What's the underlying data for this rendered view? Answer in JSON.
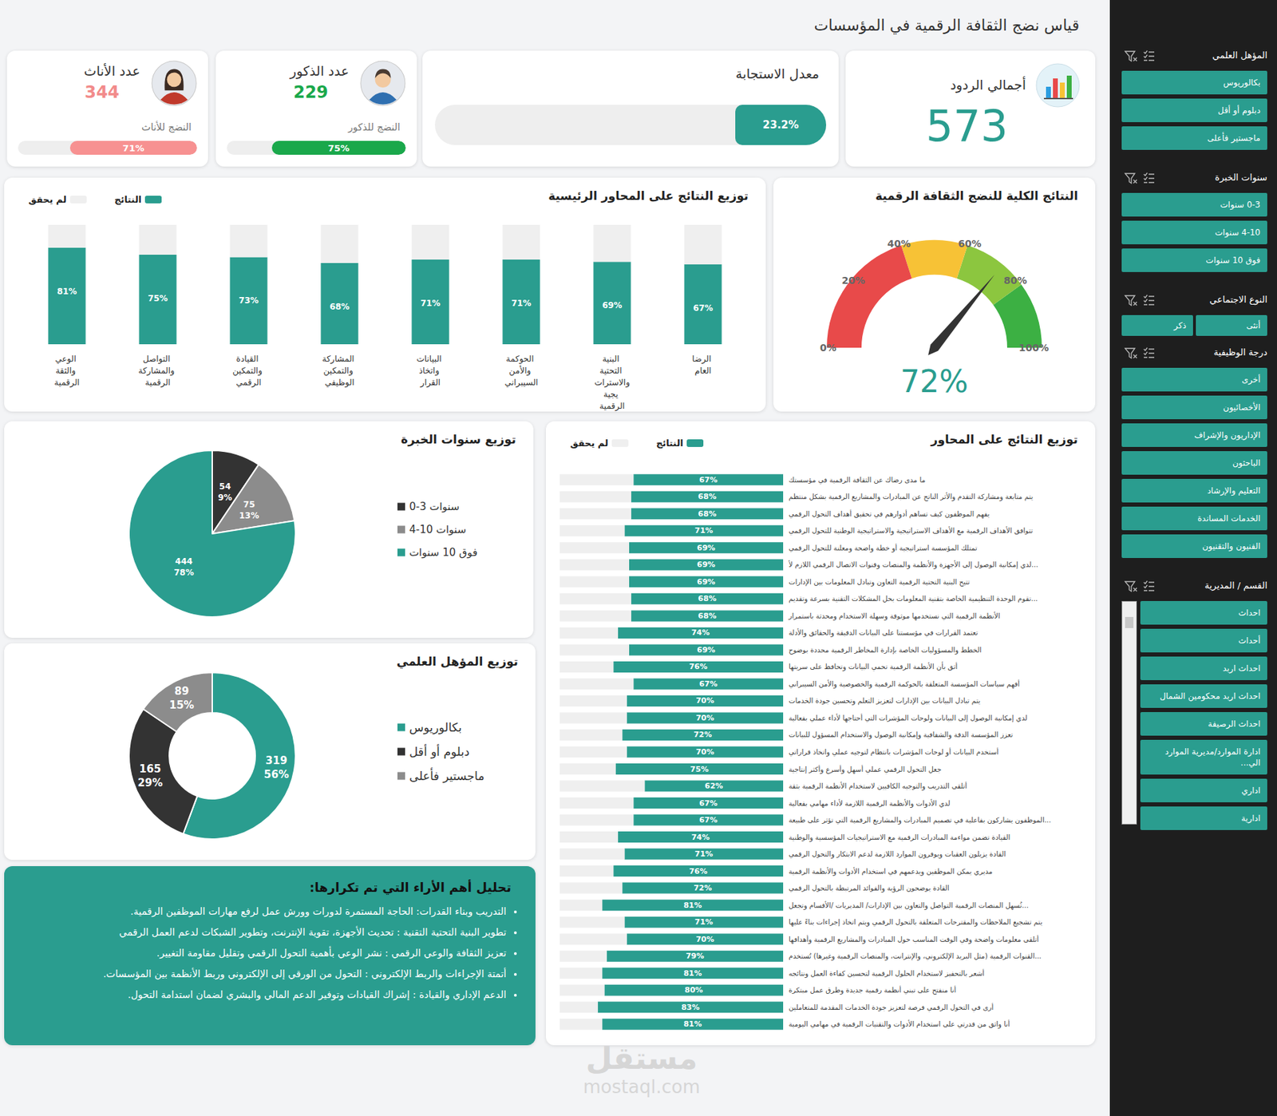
{
  "header": {
    "title": "قياس نضج الثقافة الرقمية في المؤسسات"
  },
  "kpis": {
    "total": {
      "label": "أجمالي الردود",
      "value": 573,
      "color": "#2a9d8f"
    },
    "response_rate": {
      "label": "معدل الاستجابة",
      "value": 23.2,
      "value_label": "23.2%",
      "xlim": [
        0,
        100
      ],
      "color": "#2a9d8f"
    },
    "male": {
      "label": "عدد الذكور",
      "value": 229,
      "color": "#1aa84b",
      "maturity": {
        "label": "النضج للذكور",
        "value": 75,
        "value_label": "75%",
        "xlim": [
          0,
          100
        ],
        "color": "#1aa84b"
      }
    },
    "female": {
      "label": "عدد الأناث",
      "value": 344,
      "color": "#f28b8b",
      "maturity": {
        "label": "النضج للأناث",
        "value": 71,
        "value_label": "71%",
        "xlim": [
          0,
          100
        ],
        "color": "#f79191"
      }
    }
  },
  "chart_data": [
    {
      "type": "gauge",
      "title": "النتائج الكلية للنضج الثقافة الرقمية",
      "value": 72,
      "value_label": "72%",
      "ylim": [
        0,
        100
      ],
      "yticks": [
        {
          "value": 0,
          "label": "0%"
        },
        {
          "value": 20,
          "label": "20%"
        },
        {
          "value": 40,
          "label": "40%"
        },
        {
          "value": 60,
          "label": "60%"
        },
        {
          "value": 80,
          "label": "80%"
        },
        {
          "value": 100,
          "label": "100%"
        }
      ],
      "bands": [
        {
          "from": 0,
          "to": 40,
          "color": "#e84a4a"
        },
        {
          "from": 40,
          "to": 60,
          "color": "#f7c236"
        },
        {
          "from": 60,
          "to": 80,
          "color": "#8cc63f"
        },
        {
          "from": 80,
          "to": 100,
          "color": "#3cb043"
        }
      ]
    },
    {
      "type": "bar",
      "title": "توزيع النتائج على المحاور الرئيسية",
      "categories": [
        "الرضا العام",
        "البنية التحتية والاستراتيجية الرقمية",
        "الحوكمة والأمن السيبراني",
        "البيانات واتخاذ القرار",
        "المشاركة والتمكين الوظيفي",
        "القيادة والتمكين الرقمي",
        "التواصل والمشاركة الرقمية",
        "الوعي والثقة الرقمية"
      ],
      "series": [
        {
          "name": "النتائج",
          "color": "#2a9d8f",
          "values": [
            67,
            69,
            71,
            71,
            68,
            73,
            75,
            81
          ],
          "value_labels": [
            "67%",
            "69%",
            "71%",
            "71%",
            "68%",
            "73%",
            "75%",
            "81%"
          ]
        },
        {
          "name": "لم يحقق",
          "color": "#efefef",
          "values": [
            33,
            31,
            29,
            29,
            32,
            27,
            25,
            19
          ]
        }
      ],
      "stacked": true,
      "data_labels": true,
      "ylim": [
        0,
        100
      ],
      "tick_labels": "x",
      "legend": "top-left"
    },
    {
      "type": "bar",
      "title": "توزيع النتائج على المحاور",
      "orientation": "horizontal",
      "categories": [
        "ما مدى رضاك عن الثقافة الرقمية في مؤسستك",
        "يتم متابعة ومشاركة التقدم والأثر الناتج عن المبادرات والمشاريع الرقمية بشكل منتظم",
        "يفهم الموظفون كيف تساهم أدوارهم في تحقيق أهداف التحول الرقمي",
        "تتوافق الأهداف الرقمية مع الأهداف الاستراتيجية والاستراتيجية الوطنية للتحول الرقمي",
        "تمتلك المؤسسة استراتيجية أو خطة واضحة ومعلنة للتحول الرقمي",
        "لدي إمكانية الوصول إلى الأجهزة والأنظمة والمنصات وقنوات الاتصال الرقمي اللازم لأ...",
        "تتيح البنية التحتية الرقمية التعاون وتبادل المعلومات بين الإدارات",
        "تقوم الوحدة التنظيمية الخاصة بتقنية المعلومات بحل المشكلات التقنية بسرعة وتقديم...",
        "الأنظمة الرقمية التي نستخدمها موثوقة وسهلة الاستخدام ومحدثة باستمرار",
        "تعتمد القرارات في مؤسستنا على البيانات الدقيقة والحقائق والأدلة",
        "الخطط والمسؤوليات الخاصة بإدارة المخاطر الرقمية محددة بوضوح",
        "أثق بأن الأنظمة الرقمية تحمي البيانات وتحافظ على سريتها",
        "أفهم سياسات المؤسسة المتعلقة بالحوكمة الرقمية والخصوصية والأمن السيبراني",
        "يتم تبادل البيانات بين الإدارات لتعزيز التعلم وتحسين جودة الخدمات",
        "لدي إمكانية الوصول إلى البيانات ولوحات المؤشرات التي أحتاجها لأداء عملي بفعالية",
        "تعزز المؤسسة الدقة والشفافية وإمكانية الوصول والاستخدام المسؤول للبيانات",
        "أستخدم البيانات أو لوحات المؤشرات بانتظام لتوجيه عملي واتخاذ قراراتي",
        "جعل التحول الرقمي عملي أسهل وأسرع وأكثر إنتاجية",
        "أتلقى التدريب والتوجيه الكافيين لاستخدام الأنظمة الرقمية بثقة",
        "لدي الأدوات والأنظمة الرقمية اللازمة لأداء مهامي بفعالية",
        "الموظفون يشاركون بفاعلية في تصميم المبادرات والمشاريع الرقمية التي تؤثر على طبيعة...",
        "القيادة تضمن مواءمة المبادرات الرقمية مع الاستراتيجيات المؤسسية والوطنية",
        "القادة يزيلون العقبات ويوفرون الموارد اللازمة لدعم الابتكار والتحول الرقمي",
        "مديري يمكن الموظفين ويدعمهم في استخدام الأدوات والأنظمة الرقمية",
        "القادة يوضحون الرؤية والفوائد المرتبطة بالتحول الرقمي",
        "تُسهل المنصات الرقمية التواصل والتعاون بين الإدارات/ المديريات /الأقسام وتجعل...",
        "يتم تشجيع الملاحظات والمقترحات المتعلقة بالتحول الرقمي ويتم اتخاذ إجراءات بناءً عليها",
        "أتلقى معلومات واضحة وفي الوقت المناسب حول المبادرات والمشاريع الرقمية وأهدافها",
        "القنوات الرقمية (مثل البريد الإلكتروني، والإنترانت، والمنصات الرقمية وغيرها) تُستخدم...",
        "أشعر بالتحفيز لاستخدام الحلول الرقمية لتحسين كفاءة العمل ونتائجه",
        "أنا منفتح على تبني أنظمة رقمية جديدة وطرق عمل مبتكرة",
        "أرى في التحول الرقمي فرصة لتعزيز جودة الخدمات المقدمة للمتعاملين",
        "أنا واثق من قدرتي على استخدام الأدوات والتقنيات الرقمية في مهامي اليومية"
      ],
      "series": [
        {
          "name": "النتائج",
          "color": "#2a9d8f",
          "values": [
            67,
            68,
            68,
            71,
            69,
            69,
            69,
            68,
            68,
            74,
            69,
            76,
            67,
            70,
            70,
            72,
            70,
            75,
            62,
            67,
            67,
            74,
            71,
            76,
            72,
            81,
            71,
            70,
            79,
            81,
            80,
            83,
            81
          ],
          "value_labels": [
            "67%",
            "68%",
            "68%",
            "71%",
            "69%",
            "69%",
            "69%",
            "68%",
            "68%",
            "74%",
            "69%",
            "76%",
            "67%",
            "70%",
            "70%",
            "72%",
            "70%",
            "75%",
            "62%",
            "67%",
            "67%",
            "74%",
            "71%",
            "76%",
            "72%",
            "81%",
            "71%",
            "70%",
            "79%",
            "81%",
            "80%",
            "83%",
            "81%"
          ]
        },
        {
          "name": "لم يحقق",
          "color": "#efefef",
          "values": [
            33,
            32,
            32,
            29,
            31,
            31,
            31,
            32,
            32,
            26,
            31,
            24,
            33,
            30,
            30,
            28,
            30,
            25,
            38,
            33,
            33,
            26,
            29,
            24,
            28,
            19,
            29,
            30,
            21,
            19,
            20,
            17,
            19
          ]
        }
      ],
      "stacked": true,
      "data_labels": true,
      "xlim": [
        0,
        100
      ],
      "tick_labels": "y",
      "legend": "top-left"
    },
    {
      "type": "pie",
      "title": "توزيع سنوات الخبرة",
      "categories": [
        "0-3 سنوات",
        "4-10 سنوات",
        "فوق 10 سنوات"
      ],
      "values": [
        54,
        75,
        444
      ],
      "value_labels": [
        "54\n9%",
        "75\n13%",
        "444\n78%"
      ],
      "colors": [
        "#333333",
        "#8c8c8c",
        "#2a9d8f"
      ],
      "data_labels": true,
      "legend": "right"
    },
    {
      "type": "donut",
      "title": "توزيع المؤهل العلمي",
      "categories": [
        "بكالوريوس",
        "دبلوم أو أقل",
        "ماجستير فأعلى"
      ],
      "values": [
        319,
        165,
        89
      ],
      "value_labels": [
        "319\n56%",
        "165\n29%",
        "89\n15%"
      ],
      "colors": [
        "#2a9d8f",
        "#333333",
        "#8c8c8c"
      ],
      "data_labels": true,
      "legend": "right"
    }
  ],
  "comments": {
    "title": "تحليل أهم الأراء التي تم تكرارها:",
    "items": [
      "التدريب وبناء القدرات: الحاجة المستمرة لدورات وورش عمل لرفع مهارات الموظفين الرقمية.",
      "تطوير البنية التحتية التقنية : تحديث الأجهزة، تقوية الإنترنت، وتطوير الشبكات لدعم العمل الرقمي",
      "تعزيز الثقافة والوعي الرقمي : نشر الوعي بأهمية التحول الرقمي وتقليل مقاومة التغيير.",
      "أتمتة الإجراءات والربط الإلكتروني : التحول من الورقي إلى الإلكتروني وربط الأنظمة بين المؤسسات.",
      "الدعم الإداري والقيادة : إشراك القيادات وتوفير الدعم المالي والبشري لضمان استدامة التحول."
    ]
  },
  "sidebar": [
    {
      "title": "المؤهل العلمي",
      "items": [
        "بكالوريوس",
        "دبلوم أو أقل",
        "ماجستير فأعلى"
      ]
    },
    {
      "title": "سنوات الخبرة",
      "items": [
        "0-3 سنوات",
        "4-10 سنوات",
        "فوق 10 سنوات"
      ]
    },
    {
      "title": "النوع الاجتماعي",
      "items": [
        "أنثى",
        "ذكر"
      ]
    },
    {
      "title": "درجة الوظيفية",
      "items": [
        "أخرى",
        "الأخصائيون",
        "الإداريون والإشراف",
        "الباحثون",
        "التعليم والإرشاد",
        "الخدمات المساندة",
        "الفنيون والتقنيون"
      ]
    },
    {
      "title": "القسم / المديرية",
      "items": [
        "احداث",
        "أحداث",
        "احداث اربد",
        "احداث اربد محكومين الشمال",
        "احداث الرصيفة",
        "ادارة الموارد/مديرية الموارد الي...",
        "اداري",
        "ادارية"
      ]
    }
  ],
  "watermark": [
    "مستقل",
    "mostaql.com"
  ]
}
